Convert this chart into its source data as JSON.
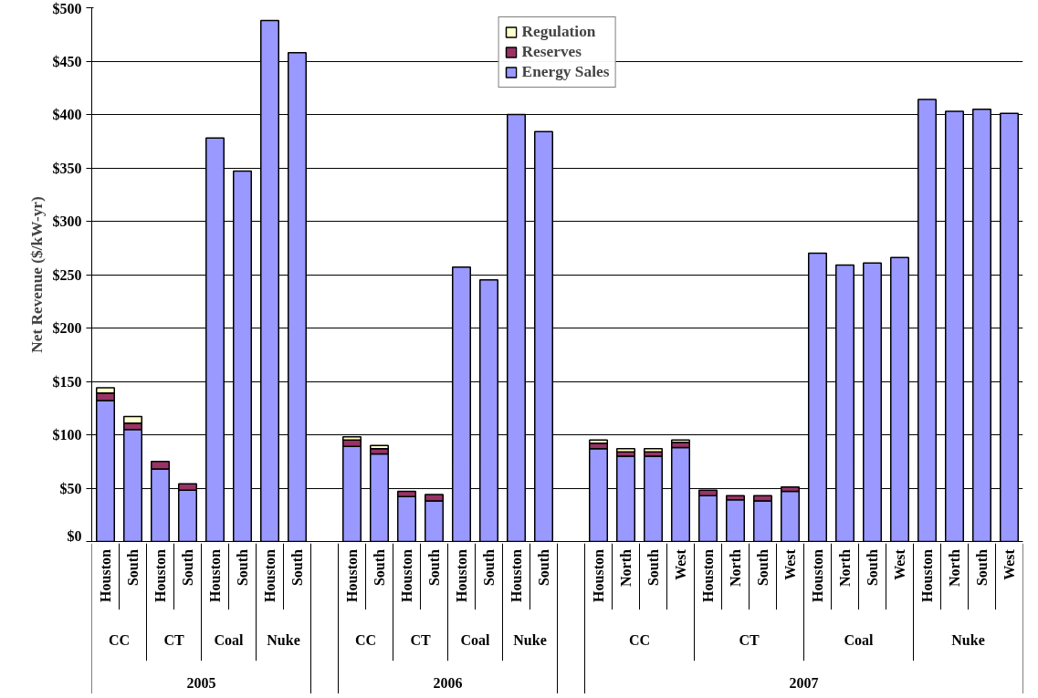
{
  "chart_data": {
    "type": "bar",
    "stacked": true,
    "ylabel": "Net Revenue ($/kW-yr)",
    "categories": [
      "Houston",
      "South",
      "Houston",
      "South",
      "Houston",
      "South",
      "Houston",
      "South",
      null,
      "Houston",
      "South",
      "Houston",
      "South",
      "Houston",
      "South",
      "Houston",
      "South",
      null,
      "Houston",
      "North",
      "South",
      "West",
      "Houston",
      "North",
      "South",
      "West",
      "Houston",
      "North",
      "South",
      "West",
      "Houston",
      "North",
      "South",
      "West"
    ],
    "series": [
      {
        "name": "Energy Sales",
        "color": "#9999ff",
        "values": [
          132,
          105,
          68,
          48,
          378,
          347,
          488,
          458,
          null,
          89,
          82,
          42,
          38,
          257,
          245,
          400,
          384,
          null,
          87,
          80,
          80,
          88,
          43,
          39,
          38,
          47,
          270,
          259,
          261,
          266,
          414,
          403,
          405,
          401
        ]
      },
      {
        "name": "Reserves",
        "color": "#993366",
        "values": [
          7,
          6,
          7,
          6,
          null,
          null,
          null,
          null,
          null,
          6,
          5,
          5,
          6,
          null,
          null,
          null,
          null,
          null,
          5,
          4,
          4,
          5,
          5,
          4,
          5,
          4,
          null,
          null,
          null,
          null,
          null,
          null,
          null,
          null
        ]
      },
      {
        "name": "Regulation",
        "color": "#ffffcc",
        "values": [
          5,
          6,
          null,
          null,
          null,
          null,
          null,
          null,
          null,
          3,
          3,
          null,
          null,
          null,
          null,
          null,
          null,
          null,
          3,
          3,
          3,
          2,
          null,
          null,
          null,
          null,
          null,
          null,
          null,
          null,
          null,
          null,
          null,
          null
        ]
      }
    ],
    "annotations": [
      "CC",
      "CT",
      "Coal",
      "Nuke",
      "CC",
      "CT",
      "Coal",
      "Nuke",
      "CC",
      "CT",
      "Coal",
      "Nuke",
      "2005",
      "2006",
      "2007"
    ],
    "ylim": [
      0,
      500
    ],
    "yticks": [
      {
        "value": 0,
        "label": "$0"
      },
      {
        "value": 50,
        "label": "$50"
      },
      {
        "value": 100,
        "label": "$100"
      },
      {
        "value": 150,
        "label": "$150"
      },
      {
        "value": 200,
        "label": "$200"
      },
      {
        "value": 250,
        "label": "$250"
      },
      {
        "value": 300,
        "label": "$300"
      },
      {
        "value": 350,
        "label": "$350"
      },
      {
        "value": 400,
        "label": "$400"
      },
      {
        "value": 450,
        "label": "$450"
      },
      {
        "value": 500,
        "label": "$500"
      }
    ],
    "grid": "y",
    "legend": "top"
  }
}
